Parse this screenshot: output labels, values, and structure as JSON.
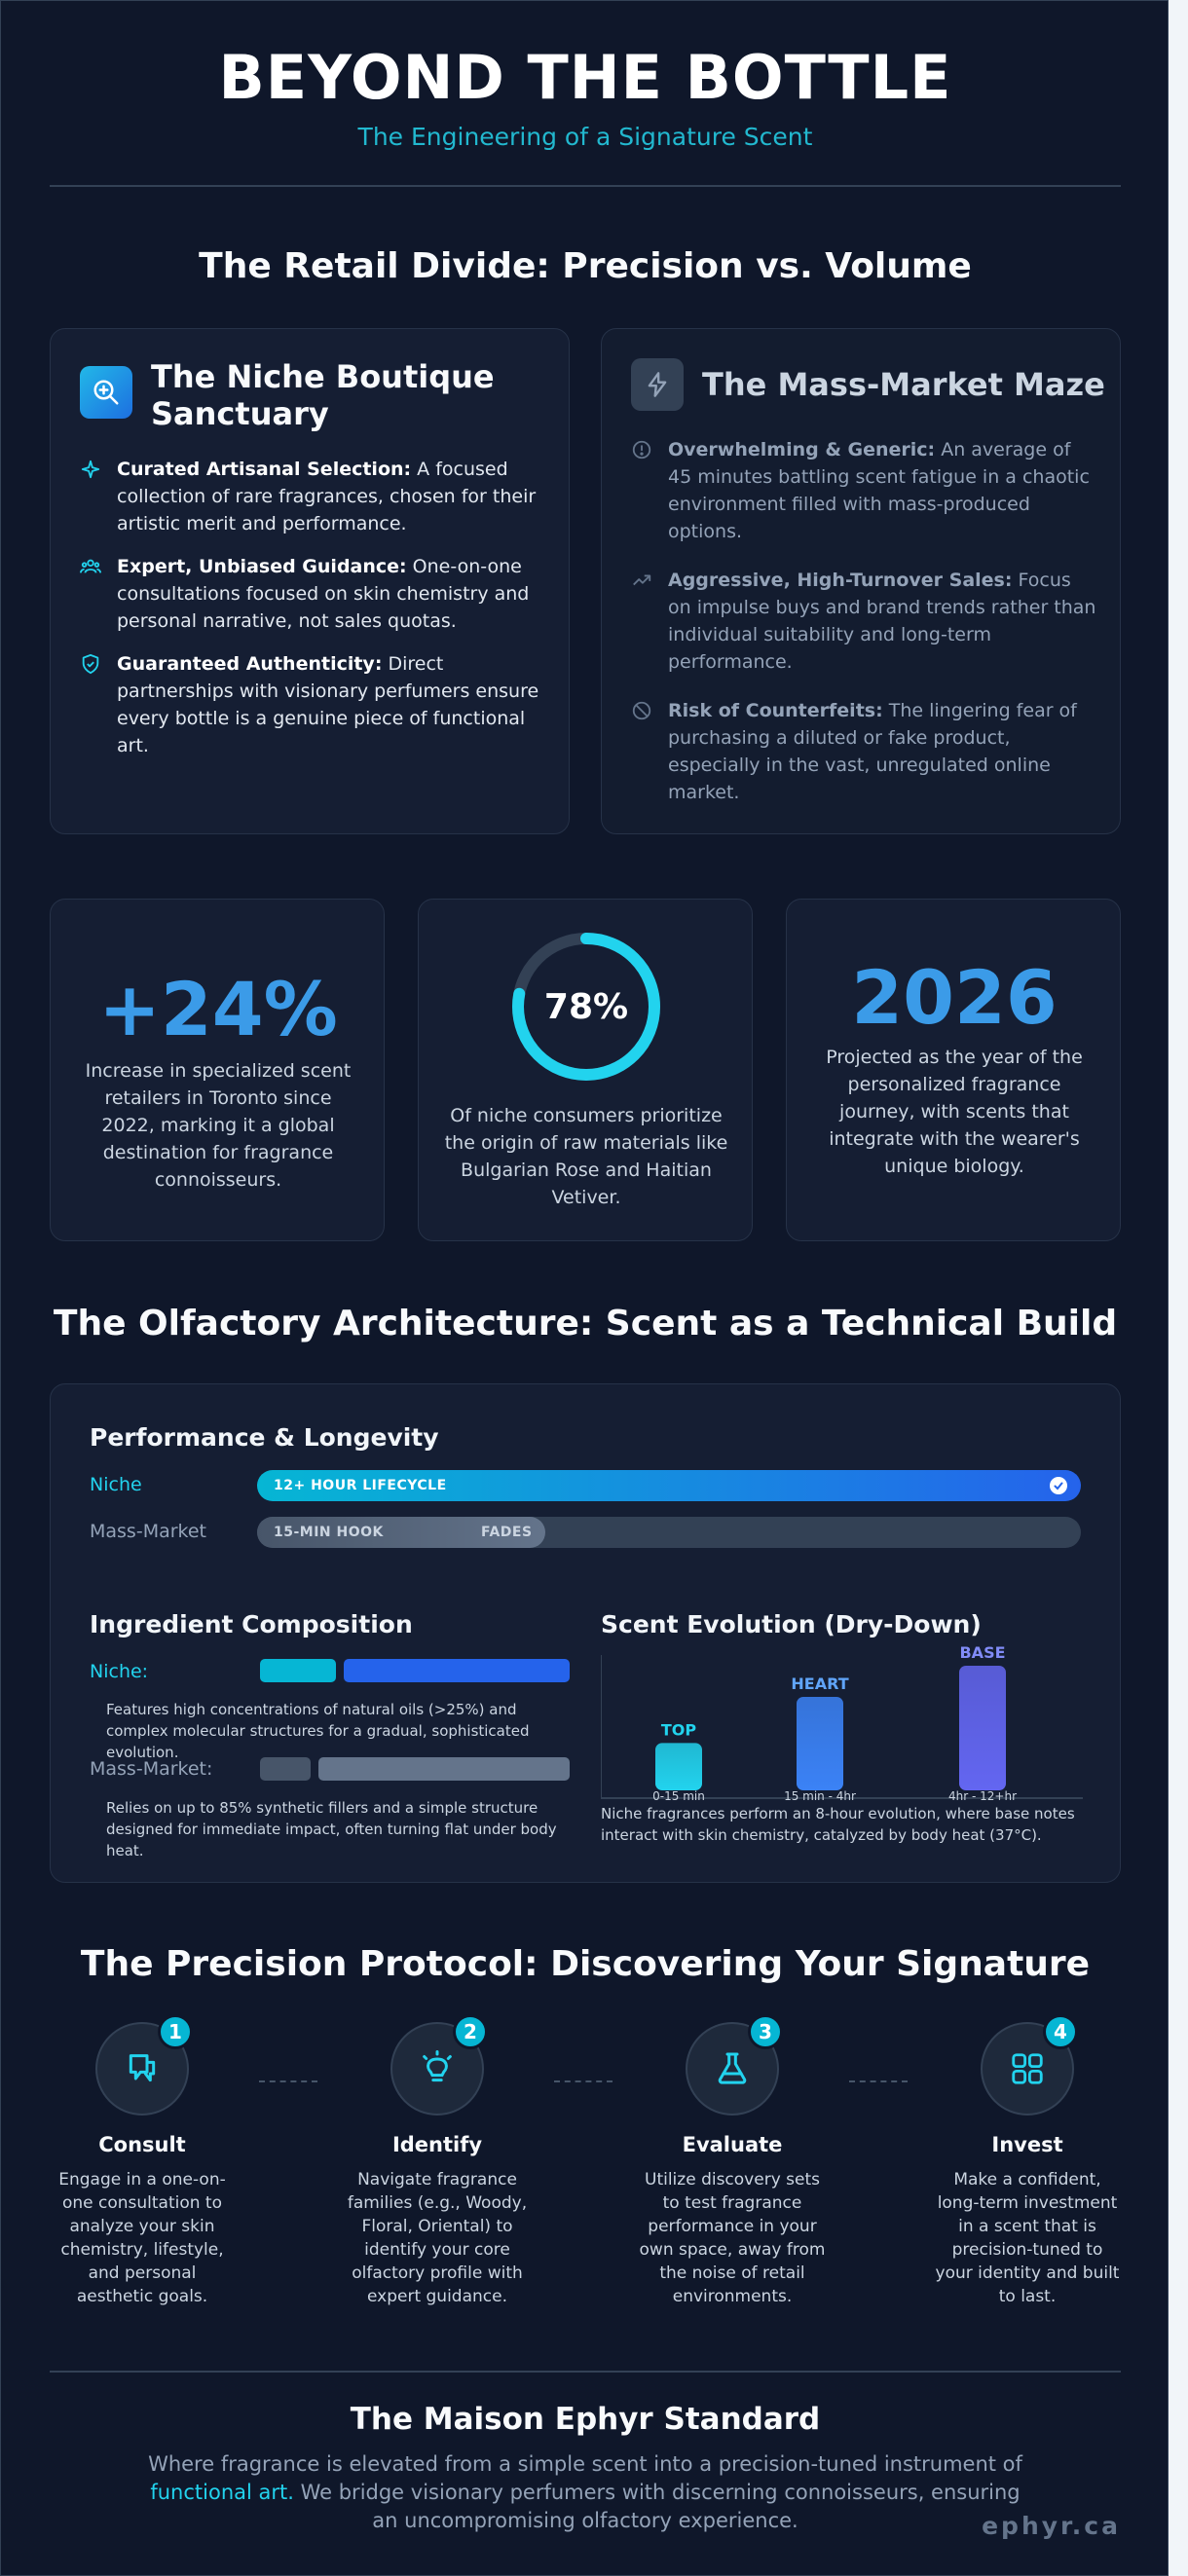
{
  "header": {
    "title": "BEYOND THE BOTTLE",
    "subtitle": "The Engineering of a Signature Scent"
  },
  "retail_divide": {
    "title": "The Retail Divide: Precision vs. Volume",
    "niche": {
      "heading_line1": "The Niche Boutique",
      "heading_line2": "Sanctuary",
      "icon": "search-sparkle-icon",
      "accent": "#0ea5e9",
      "bullets": [
        {
          "icon": "sparkle-icon",
          "bold": "Curated Artisanal Selection:",
          "text": " A focused collection of rare fragrances, chosen for their artistic merit and performance."
        },
        {
          "icon": "people-icon",
          "bold": "Expert, Unbiased Guidance:",
          "text": " One-on-one consultations focused on skin chemistry and personal narrative, not sales quotas."
        },
        {
          "icon": "shield-check-icon",
          "bold": "Guaranteed Authenticity:",
          "text": " Direct partnerships with visionary perfumers ensure every bottle is a genuine piece of functional art."
        }
      ]
    },
    "mass": {
      "heading": "The Mass-Market Maze",
      "icon": "lightning-icon",
      "bullets": [
        {
          "icon": "alert-circle-icon",
          "bold": "Overwhelming & Generic:",
          "text": " An average of 45 minutes battling scent fatigue in a chaotic environment filled with mass-produced options."
        },
        {
          "icon": "trend-up-icon",
          "bold": "Aggressive, High-Turnover Sales:",
          "text": " Focus on impulse buys and brand trends rather than individual suitability and long-term performance."
        },
        {
          "icon": "ban-icon",
          "bold": "Risk of Counterfeits:",
          "text": " The lingering fear of purchasing a diluted or fake product, especially in the vast, unregulated online market."
        }
      ]
    }
  },
  "stats": [
    {
      "value": "+24%",
      "desc": "Increase in specialized scent retailers in Toronto since 2022, marking it a global destination for fragrance connoisseurs."
    },
    {
      "value": "78%",
      "fraction": 0.78,
      "desc": "Of niche consumers prioritize the origin of raw materials like Bulgarian Rose and Haitian Vetiver."
    },
    {
      "value": "2026",
      "desc": "Projected as the year of the personalized fragrance journey, with scents that integrate with the wearer's unique biology."
    }
  ],
  "architecture": {
    "title": "The Olfactory Architecture: Scent as a Technical Build",
    "performance": {
      "heading": "Performance & Longevity",
      "niche_label": "Niche",
      "niche_bar_text": "12+ HOUR LIFECYCLE",
      "mass_label": "Mass-Market",
      "mass_bar_hook": "15-MIN HOOK",
      "mass_bar_fades": "FADES"
    },
    "composition": {
      "heading": "Ingredient Composition",
      "niche_label": "Niche:",
      "niche_note": "Features high concentrations of natural oils (>25%) and complex molecular structures for a gradual, sophisticated evolution.",
      "mass_label": "Mass-Market:",
      "mass_note": "Relies on up to 85% synthetic fillers and a simple structure designed for immediate impact, often turning flat under body heat."
    },
    "evolution": {
      "heading": "Scent Evolution (Dry-Down)",
      "note": "Niche fragrances perform an 8-hour evolution, where base notes interact with skin chemistry, catalyzed by body heat (37°C)."
    }
  },
  "chart_data": {
    "type": "bar",
    "categories": [
      "0-15 min",
      "15 min - 4hr",
      "4hr - 12+hr"
    ],
    "series": [
      {
        "values": [
          38,
          75,
          100
        ]
      }
    ],
    "data_labels": [
      "TOP",
      "HEART",
      "BASE"
    ],
    "title": "Scent Evolution (Dry-Down)",
    "xlabel": "",
    "ylabel": "",
    "ylim": [
      0,
      100
    ],
    "colors": [
      "#22d3ee",
      "#3b82f6",
      "#6366f1"
    ]
  },
  "protocol": {
    "title": "The Precision Protocol: Discovering Your Signature",
    "steps": [
      {
        "num": "1",
        "icon": "chat-hand-icon",
        "title": "Consult",
        "desc": "Engage in a one-on-one consultation to analyze your skin chemistry, lifestyle, and personal aesthetic goals."
      },
      {
        "num": "2",
        "icon": "lightbulb-icon",
        "title": "Identify",
        "desc": "Navigate fragrance families (e.g., Woody, Floral, Oriental) to identify your core olfactory profile with expert guidance."
      },
      {
        "num": "3",
        "icon": "flask-icon",
        "title": "Evaluate",
        "desc": "Utilize discovery sets to test fragrance performance in your own space, away from the noise of retail environments."
      },
      {
        "num": "4",
        "icon": "grid-icon",
        "title": "Invest",
        "desc": "Make a confident, long-term investment in a scent that is precision-tuned to your identity and built to last."
      }
    ]
  },
  "footer": {
    "title": "The Maison Ephyr Standard",
    "text_a": "Where fragrance is elevated from a simple scent into a precision-tuned instrument of ",
    "text_highlight": "functional art.",
    "text_b": " We bridge visionary perfumers with discerning connoisseurs, ensuring an uncompromising olfactory experience.",
    "brand": "ephyr.ca"
  }
}
